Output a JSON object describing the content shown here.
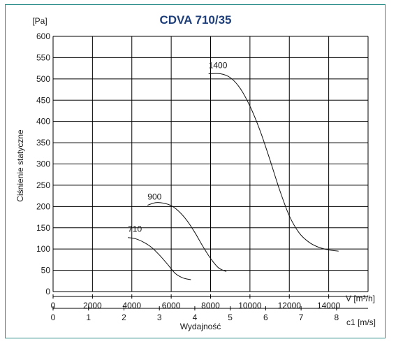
{
  "chart_data": {
    "type": "line",
    "title": "CDVA 710/35",
    "ylabel": "Ciśnienie statyczne",
    "y_unit": "[Pa]",
    "ylim": [
      0,
      600
    ],
    "yticks": [
      0,
      50,
      100,
      150,
      200,
      250,
      300,
      350,
      400,
      450,
      500,
      550,
      600
    ],
    "xlim": [
      0,
      16000
    ],
    "xticks": [
      0,
      2000,
      4000,
      6000,
      8000,
      10000,
      12000,
      14000
    ],
    "xlabel_units": "V [m³/h]",
    "secondary_axis": {
      "label": "c1 [m/s]",
      "ticks": [
        0,
        1,
        2,
        3,
        4,
        5,
        6,
        7,
        8
      ],
      "xlim": [
        0,
        8.89
      ],
      "caption": "Wydajność"
    },
    "grid": true,
    "series": [
      {
        "name": "710",
        "x": [
          3800,
          4200,
          4600,
          5000,
          5400,
          5800,
          6200,
          6600,
          7000
        ],
        "y": [
          127,
          124,
          116,
          104,
          86,
          65,
          43,
          32,
          28
        ]
      },
      {
        "name": "900",
        "x": [
          4800,
          5200,
          5600,
          6000,
          6400,
          6800,
          7200,
          7600,
          8000,
          8400,
          8800
        ],
        "y": [
          203,
          209,
          208,
          202,
          188,
          167,
          139,
          107,
          78,
          56,
          47
        ]
      },
      {
        "name": "1400",
        "x": [
          7900,
          8500,
          9000,
          9500,
          10000,
          10500,
          11000,
          11500,
          12000,
          12500,
          13000,
          13500,
          14000,
          14500
        ],
        "y": [
          512,
          512,
          503,
          478,
          436,
          380,
          312,
          240,
          178,
          138,
          116,
          104,
          98,
          95
        ]
      }
    ],
    "curve_labels": [
      "710",
      "900",
      "1400"
    ]
  }
}
